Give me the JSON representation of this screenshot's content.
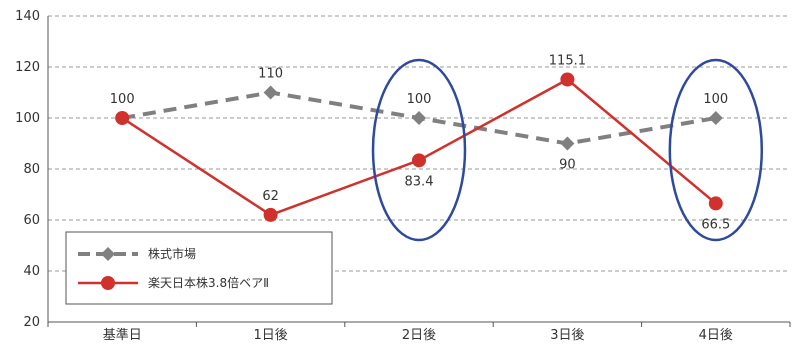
{
  "chart_data": {
    "type": "line",
    "categories": [
      "基準日",
      "1日後",
      "2日後",
      "3日後",
      "4日後"
    ],
    "ylim": [
      20,
      140
    ],
    "yticks": [
      20,
      40,
      60,
      80,
      100,
      120,
      140
    ],
    "grid": true,
    "legend_position": "bottom-left",
    "series": [
      {
        "name": "株式市場",
        "values": [
          100,
          110,
          100,
          90,
          100
        ],
        "labels": [
          "100",
          "110",
          "100",
          "90",
          "100"
        ],
        "label_positions": [
          "above",
          "above",
          "above",
          "below",
          "above"
        ],
        "color": "#808080",
        "line_style": "dashed",
        "marker": "diamond"
      },
      {
        "name": "楽天日本株3.8倍ベアⅡ",
        "values": [
          100,
          62,
          83.4,
          115.1,
          66.5
        ],
        "labels": [
          "100",
          "62",
          "83.4",
          "115.1",
          "66.5"
        ],
        "label_positions": [
          "none",
          "above",
          "below",
          "above",
          "below"
        ],
        "color": "#d0312d",
        "line_style": "solid",
        "marker": "circle"
      }
    ],
    "highlights": [
      {
        "category_index": 2,
        "color": "#2e4a9e"
      },
      {
        "category_index": 4,
        "color": "#2e4a9e"
      }
    ]
  }
}
